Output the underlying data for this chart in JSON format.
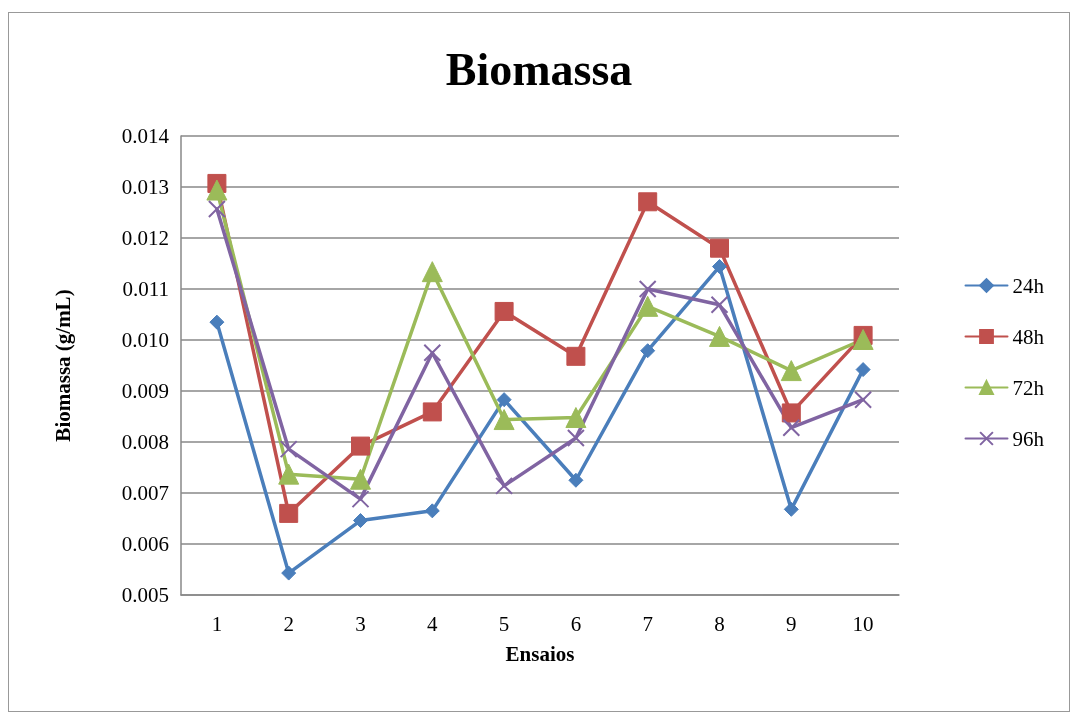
{
  "chart_data": {
    "type": "line",
    "title": "Biomassa",
    "xlabel": "Ensaios",
    "ylabel": "Biomassa (g/mL)",
    "categories": [
      "1",
      "2",
      "3",
      "4",
      "5",
      "6",
      "7",
      "8",
      "9",
      "10"
    ],
    "series": [
      {
        "name": "24h",
        "color": "#4a7ebb",
        "marker": "diamond",
        "values": [
          0.01035,
          0.00543,
          0.00646,
          0.00665,
          0.00883,
          0.00725,
          0.00979,
          0.01144,
          0.00668,
          0.00942
        ]
      },
      {
        "name": "48h",
        "color": "#c0504d",
        "marker": "square",
        "values": [
          0.01307,
          0.0066,
          0.00792,
          0.00859,
          0.01056,
          0.00968,
          0.01271,
          0.0118,
          0.00857,
          0.01009
        ]
      },
      {
        "name": "72h",
        "color": "#9bbb59",
        "marker": "triangle",
        "values": [
          0.01294,
          0.00737,
          0.00727,
          0.01134,
          0.00844,
          0.00848,
          0.01066,
          0.01007,
          0.0094,
          0.01001
        ]
      },
      {
        "name": "96h",
        "color": "#8064a2",
        "marker": "cross",
        "values": [
          0.01257,
          0.00786,
          0.00688,
          0.00975,
          0.00714,
          0.00808,
          0.011,
          0.01069,
          0.00828,
          0.00883
        ]
      }
    ],
    "ylim": [
      0.005,
      0.014
    ],
    "yticks": [
      0.005,
      0.006,
      0.007,
      0.008,
      0.009,
      {
        "value": 0.01,
        "label": "0.010"
      },
      0.011,
      0.012,
      0.013,
      0.014
    ],
    "grid": "y",
    "legend": "right",
    "line_style": "solid"
  }
}
